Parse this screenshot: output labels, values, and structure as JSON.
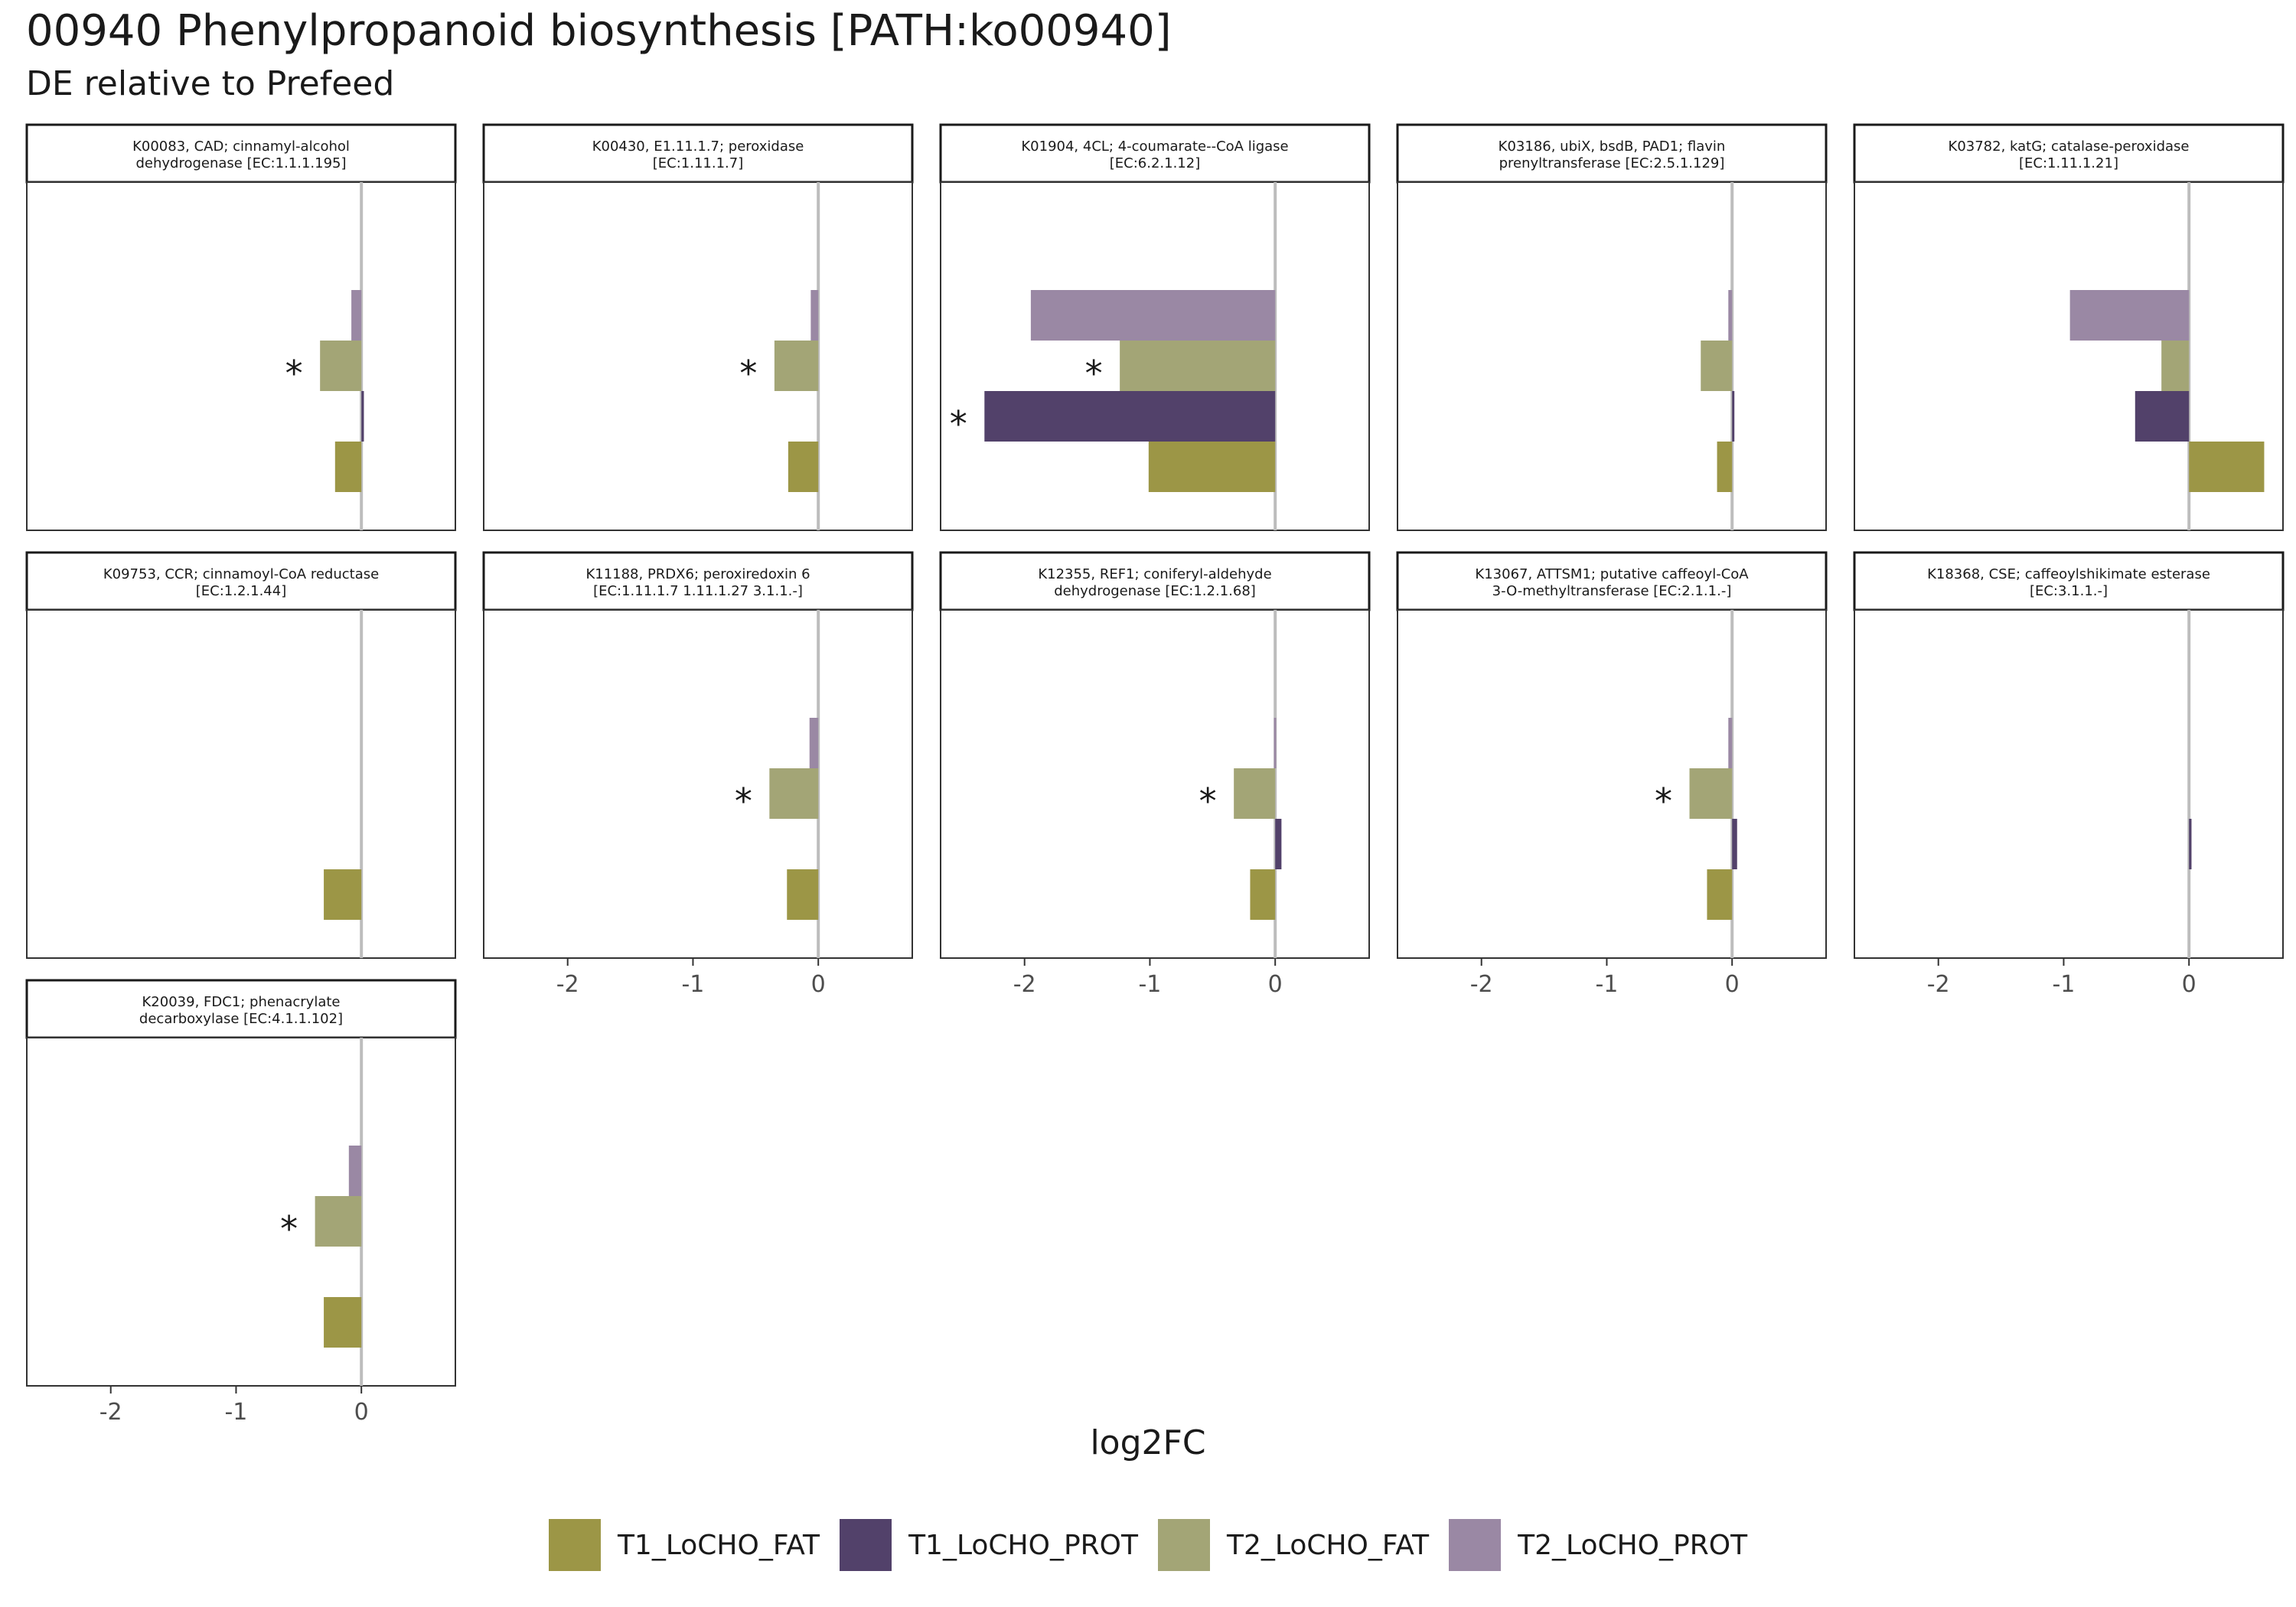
{
  "title": "00940 Phenylpropanoid biosynthesis [PATH:ko00940]",
  "subtitle": "DE relative to Prefeed",
  "chart_data": {
    "type": "bar",
    "orientation": "horizontal",
    "facets": "5 columns, free panels, shared x axis",
    "xlabel": "log2FC",
    "xlim": [
      -2.67,
      0.75
    ],
    "xticks": [
      -2,
      -1,
      0
    ],
    "reference_line_x": 0,
    "grid": false,
    "legend_position": "bottom",
    "series": [
      {
        "name": "T1_LoCHO_FAT",
        "color": "#9c9646"
      },
      {
        "name": "T1_LoCHO_PROT",
        "color": "#52416a"
      },
      {
        "name": "T2_LoCHO_FAT",
        "color": "#a3a576"
      },
      {
        "name": "T2_LoCHO_PROT",
        "color": "#9a88a4"
      }
    ],
    "panels": [
      {
        "label": [
          "K00083, CAD; cinnamyl-alcohol",
          "dehydrogenase [EC:1.1.1.195]"
        ],
        "values": [
          -0.21,
          0.02,
          -0.33,
          -0.08
        ],
        "significant": [
          false,
          false,
          true,
          false
        ]
      },
      {
        "label": [
          "K00430, E1.11.1.7; peroxidase",
          "[EC:1.11.1.7]"
        ],
        "values": [
          -0.24,
          null,
          -0.35,
          -0.06
        ],
        "significant": [
          false,
          false,
          true,
          false
        ]
      },
      {
        "label": [
          "K01904, 4CL; 4-coumarate--CoA ligase",
          "[EC:6.2.1.12]"
        ],
        "values": [
          -1.01,
          -2.32,
          -1.24,
          -1.95
        ],
        "significant": [
          false,
          true,
          true,
          false
        ]
      },
      {
        "label": [
          "K03186, ubiX, bsdB, PAD1; flavin",
          "prenyltransferase [EC:2.5.1.129]"
        ],
        "values": [
          -0.12,
          0.01,
          -0.25,
          -0.03
        ],
        "significant": [
          false,
          false,
          false,
          false
        ]
      },
      {
        "label": [
          "K03782, katG; catalase-peroxidase",
          "[EC:1.11.1.21]"
        ],
        "values": [
          0.6,
          -0.43,
          -0.22,
          -0.95
        ],
        "significant": [
          false,
          false,
          false,
          false
        ]
      },
      {
        "label": [
          "K09753, CCR; cinnamoyl-CoA reductase",
          "[EC:1.2.1.44]"
        ],
        "values": [
          -0.3,
          null,
          null,
          null
        ],
        "significant": [
          false,
          false,
          false,
          false
        ]
      },
      {
        "label": [
          "K11188, PRDX6; peroxiredoxin 6",
          "[EC:1.11.1.7 1.11.1.27 3.1.1.-]"
        ],
        "values": [
          -0.25,
          null,
          -0.39,
          -0.07
        ],
        "significant": [
          false,
          false,
          true,
          false
        ]
      },
      {
        "label": [
          "K12355, REF1; coniferyl-aldehyde",
          "dehydrogenase [EC:1.2.1.68]"
        ],
        "values": [
          -0.2,
          0.05,
          -0.33,
          -0.01
        ],
        "significant": [
          false,
          false,
          true,
          false
        ]
      },
      {
        "label": [
          "K13067, ATTSM1; putative caffeoyl-CoA",
          "3-O-methyltransferase [EC:2.1.1.-]"
        ],
        "values": [
          -0.2,
          0.04,
          -0.34,
          -0.03
        ],
        "significant": [
          false,
          false,
          true,
          false
        ]
      },
      {
        "label": [
          "K18368, CSE; caffeoylshikimate esterase",
          "[EC:3.1.1.-]"
        ],
        "values": [
          null,
          0.02,
          null,
          null
        ],
        "significant": [
          false,
          false,
          false,
          false
        ]
      },
      {
        "label": [
          "K20039, FDC1; phenacrylate",
          "decarboxylase [EC:4.1.1.102]"
        ],
        "values": [
          -0.3,
          null,
          -0.37,
          -0.1
        ],
        "significant": [
          false,
          false,
          true,
          false
        ]
      }
    ]
  }
}
